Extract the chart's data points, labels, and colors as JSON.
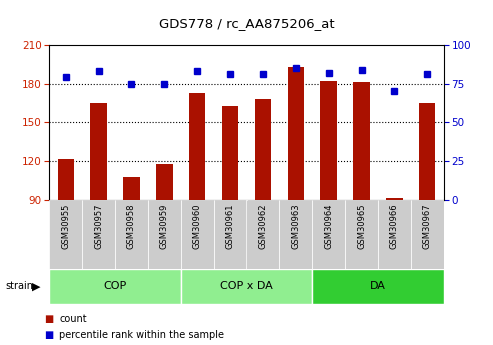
{
  "title": "GDS778 / rc_AA875206_at",
  "samples": [
    "GSM30955",
    "GSM30957",
    "GSM30958",
    "GSM30959",
    "GSM30960",
    "GSM30961",
    "GSM30962",
    "GSM30963",
    "GSM30964",
    "GSM30965",
    "GSM30966",
    "GSM30967"
  ],
  "counts": [
    122,
    165,
    108,
    118,
    173,
    163,
    168,
    193,
    182,
    181,
    92,
    165
  ],
  "percentiles": [
    79,
    83,
    75,
    75,
    83,
    81,
    81,
    85,
    82,
    84,
    70,
    81
  ],
  "ylim_left": [
    90,
    210
  ],
  "ylim_right": [
    0,
    100
  ],
  "yticks_left": [
    90,
    120,
    150,
    180,
    210
  ],
  "yticks_right": [
    0,
    25,
    50,
    75,
    100
  ],
  "groups": [
    {
      "label": "COP",
      "start": 0,
      "end": 4,
      "color": "#90EE90"
    },
    {
      "label": "COP x DA",
      "start": 4,
      "end": 8,
      "color": "#90EE90"
    },
    {
      "label": "DA",
      "start": 8,
      "end": 12,
      "color": "#32CD32"
    }
  ],
  "bar_color": "#aa1100",
  "dot_color": "#0000cc",
  "left_label_color": "#cc2200",
  "right_label_color": "#0000cc",
  "tick_bg_color": "#cccccc",
  "chart_bg_color": "#ffffff",
  "hline_y_left": [
    120,
    150,
    180
  ],
  "legend_items": [
    {
      "color": "#aa1100",
      "label": "count"
    },
    {
      "color": "#0000cc",
      "label": "percentile rank within the sample"
    }
  ]
}
